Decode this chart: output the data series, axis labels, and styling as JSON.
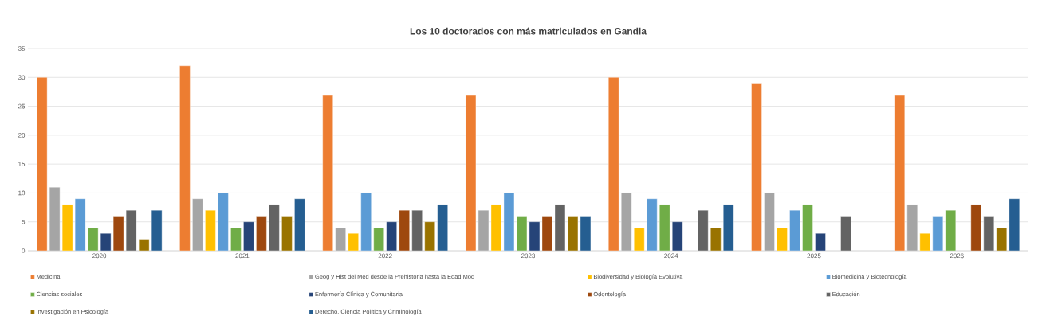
{
  "chart_data": {
    "type": "bar",
    "title": "Los 10 doctorados con más matriculados en Gandia",
    "categories": [
      "2020",
      "2021",
      "2022",
      "2023",
      "2024",
      "2025",
      "2026"
    ],
    "series": [
      {
        "name": "Medicina",
        "color": "#ed7d31",
        "values": [
          30,
          32,
          27,
          27,
          30,
          29,
          27
        ]
      },
      {
        "name": "Geog y Hist del Med desde la Prehistoria hasta la Edad Mod",
        "color": "#a5a5a5",
        "values": [
          11,
          9,
          4,
          7,
          10,
          10,
          8
        ]
      },
      {
        "name": "Biodiversidad y Biología Evolutiva",
        "color": "#ffc000",
        "values": [
          8,
          7,
          3,
          8,
          4,
          4,
          3
        ]
      },
      {
        "name": "Biomedicina y Biotecnología",
        "color": "#5b9bd5",
        "values": [
          9,
          10,
          10,
          10,
          9,
          7,
          6
        ]
      },
      {
        "name": "Ciencias sociales",
        "color": "#70ad47",
        "values": [
          4,
          4,
          4,
          6,
          8,
          8,
          7
        ]
      },
      {
        "name": "Enfermería Clínica y Comunitaria",
        "color": "#264478",
        "values": [
          3,
          5,
          5,
          5,
          5,
          3,
          null
        ]
      },
      {
        "name": "Odontología",
        "color": "#9e480e",
        "values": [
          6,
          6,
          7,
          6,
          null,
          null,
          8
        ]
      },
      {
        "name": "Educación",
        "color": "#636363",
        "values": [
          7,
          8,
          7,
          8,
          7,
          6,
          6
        ]
      },
      {
        "name": "Investigación en Psicología",
        "color": "#997300",
        "values": [
          2,
          6,
          5,
          6,
          4,
          null,
          4
        ]
      },
      {
        "name": "Derecho, Ciencia Política y Criminología",
        "color": "#255e91",
        "values": [
          7,
          9,
          8,
          6,
          8,
          null,
          9
        ]
      }
    ],
    "ylim": [
      0,
      35
    ],
    "yticks": [
      0,
      5,
      10,
      15,
      20,
      25,
      30,
      35
    ],
    "grid": "y",
    "legend": "bottom"
  }
}
